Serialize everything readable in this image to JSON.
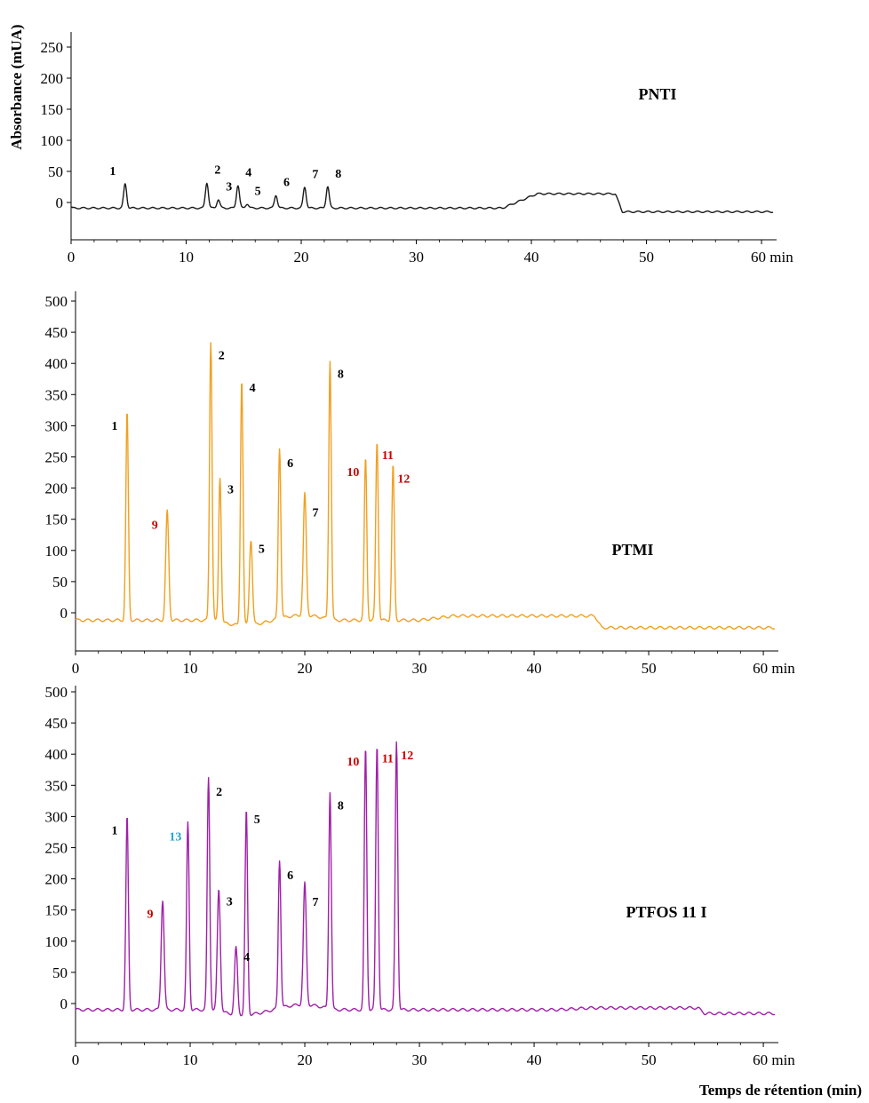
{
  "colors": {
    "black": "#000000",
    "red": "#cc0000",
    "cyan": "#1aa7d6",
    "PNTI": "#1a1a1a",
    "PTMI": "#f0a020",
    "PTFOS": "#a020a8"
  },
  "ylabel": "Absorbance (mUA)",
  "xlabel": "Temps de rétention (min)",
  "x_unit": "min",
  "chart_data": [
    {
      "type": "line",
      "label": "PNTI",
      "xlim": [
        0,
        61
      ],
      "ylim": [
        -60,
        270
      ],
      "yticks": [
        0,
        50,
        100,
        150,
        200,
        250
      ],
      "xticks": [
        0,
        10,
        20,
        30,
        40,
        50,
        60
      ],
      "baseline": -9,
      "peaks": [
        {
          "label": "1",
          "x": 4.7,
          "y": 30,
          "color": "black"
        },
        {
          "label": "2",
          "x": 11.8,
          "y": 32,
          "color": "black"
        },
        {
          "label": "3",
          "x": 12.8,
          "y": 5,
          "color": "black"
        },
        {
          "label": "4",
          "x": 14.5,
          "y": 28,
          "color": "black"
        },
        {
          "label": "5",
          "x": 15.3,
          "y": -2,
          "color": "black"
        },
        {
          "label": "6",
          "x": 17.8,
          "y": 12,
          "color": "black"
        },
        {
          "label": "7",
          "x": 20.3,
          "y": 25,
          "color": "black"
        },
        {
          "label": "8",
          "x": 22.3,
          "y": 26,
          "color": "black"
        }
      ],
      "plateau": {
        "start": 37.5,
        "end": 47.3,
        "level": 14
      }
    },
    {
      "type": "line",
      "label": "PTMI",
      "xlim": [
        0,
        61
      ],
      "ylim": [
        -60,
        510
      ],
      "yticks": [
        0,
        50,
        100,
        150,
        200,
        250,
        300,
        350,
        400,
        450,
        500
      ],
      "xticks": [
        0,
        10,
        20,
        30,
        40,
        50,
        60
      ],
      "baseline": -12,
      "peaks": [
        {
          "label": "1",
          "x": 4.5,
          "y": 322,
          "color": "black"
        },
        {
          "label": "9",
          "x": 8.0,
          "y": 163,
          "color": "red"
        },
        {
          "label": "2",
          "x": 11.8,
          "y": 435,
          "color": "black"
        },
        {
          "label": "3",
          "x": 12.6,
          "y": 220,
          "color": "black"
        },
        {
          "label": "4",
          "x": 14.5,
          "y": 383,
          "color": "black"
        },
        {
          "label": "5",
          "x": 15.3,
          "y": 125,
          "color": "black"
        },
        {
          "label": "6",
          "x": 17.8,
          "y": 262,
          "color": "black"
        },
        {
          "label": "7",
          "x": 20.0,
          "y": 183,
          "color": "black"
        },
        {
          "label": "8",
          "x": 22.2,
          "y": 405,
          "color": "black"
        },
        {
          "label": "10",
          "x": 25.3,
          "y": 248,
          "color": "red"
        },
        {
          "label": "11",
          "x": 26.3,
          "y": 275,
          "color": "red"
        },
        {
          "label": "12",
          "x": 27.7,
          "y": 237,
          "color": "red"
        }
      ],
      "plateau": {
        "start": 30,
        "end": 45.3,
        "level": -5
      }
    },
    {
      "type": "line",
      "label": "PTFOS 11 I",
      "xlim": [
        0,
        61
      ],
      "ylim": [
        -60,
        510
      ],
      "yticks": [
        0,
        50,
        100,
        150,
        200,
        250,
        300,
        350,
        400,
        450,
        500
      ],
      "xticks": [
        0,
        10,
        20,
        30,
        40,
        50,
        60
      ],
      "baseline": -10,
      "peaks": [
        {
          "label": "1",
          "x": 4.5,
          "y": 300,
          "color": "black"
        },
        {
          "label": "9",
          "x": 7.6,
          "y": 166,
          "color": "red"
        },
        {
          "label": "13",
          "x": 9.8,
          "y": 290,
          "color": "cyan"
        },
        {
          "label": "2",
          "x": 11.6,
          "y": 362,
          "color": "black"
        },
        {
          "label": "3",
          "x": 12.5,
          "y": 186,
          "color": "black"
        },
        {
          "label": "4",
          "x": 14.0,
          "y": 97,
          "color": "black"
        },
        {
          "label": "5",
          "x": 14.9,
          "y": 318,
          "color": "black"
        },
        {
          "label": "6",
          "x": 17.8,
          "y": 228,
          "color": "black"
        },
        {
          "label": "7",
          "x": 20.0,
          "y": 185,
          "color": "black"
        },
        {
          "label": "8",
          "x": 22.2,
          "y": 340,
          "color": "black"
        },
        {
          "label": "10",
          "x": 25.3,
          "y": 410,
          "color": "red"
        },
        {
          "label": "11",
          "x": 26.3,
          "y": 415,
          "color": "red"
        },
        {
          "label": "12",
          "x": 28.0,
          "y": 420,
          "color": "red"
        }
      ],
      "plateau": {
        "start": 42,
        "end": 54.3,
        "level": -7
      }
    }
  ]
}
